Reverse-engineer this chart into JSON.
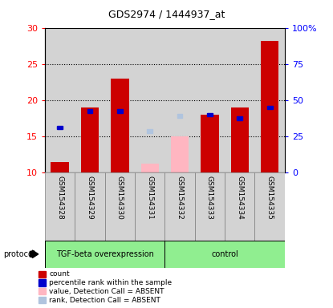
{
  "title": "GDS2974 / 1444937_at",
  "samples": [
    "GSM154328",
    "GSM154329",
    "GSM154330",
    "GSM154331",
    "GSM154332",
    "GSM154333",
    "GSM154334",
    "GSM154335"
  ],
  "red_bars": [
    11.4,
    19.0,
    23.0,
    null,
    null,
    18.0,
    19.0,
    28.2
  ],
  "pink_bars": [
    null,
    null,
    null,
    11.2,
    15.0,
    null,
    null,
    null
  ],
  "blue_squares": [
    16.2,
    18.5,
    18.5,
    null,
    null,
    18.0,
    17.5,
    19.0
  ],
  "light_blue_squares": [
    null,
    null,
    null,
    15.7,
    17.8,
    null,
    null,
    null
  ],
  "bar_bottom": 10,
  "ylim_left": [
    10,
    30
  ],
  "ylim_right": [
    0,
    100
  ],
  "yticks_left": [
    10,
    15,
    20,
    25,
    30
  ],
  "ytick_labels_left": [
    "10",
    "15",
    "20",
    "25",
    "30"
  ],
  "yticks_right": [
    0,
    25,
    50,
    75,
    100
  ],
  "ytick_labels_right": [
    "0",
    "25",
    "50",
    "75",
    "100%"
  ],
  "tgf_label": "TGF-beta overexpression",
  "ctrl_label": "control",
  "protocol_color": "#90ee90",
  "red_color": "#cc0000",
  "pink_color": "#ffb6c1",
  "blue_color": "#0000cc",
  "light_blue_color": "#b0c4de",
  "bg_color": "#d3d3d3",
  "legend_items": [
    {
      "label": "count",
      "color": "#cc0000"
    },
    {
      "label": "percentile rank within the sample",
      "color": "#0000cc"
    },
    {
      "label": "value, Detection Call = ABSENT",
      "color": "#ffb6c1"
    },
    {
      "label": "rank, Detection Call = ABSENT",
      "color": "#b0c4de"
    }
  ]
}
